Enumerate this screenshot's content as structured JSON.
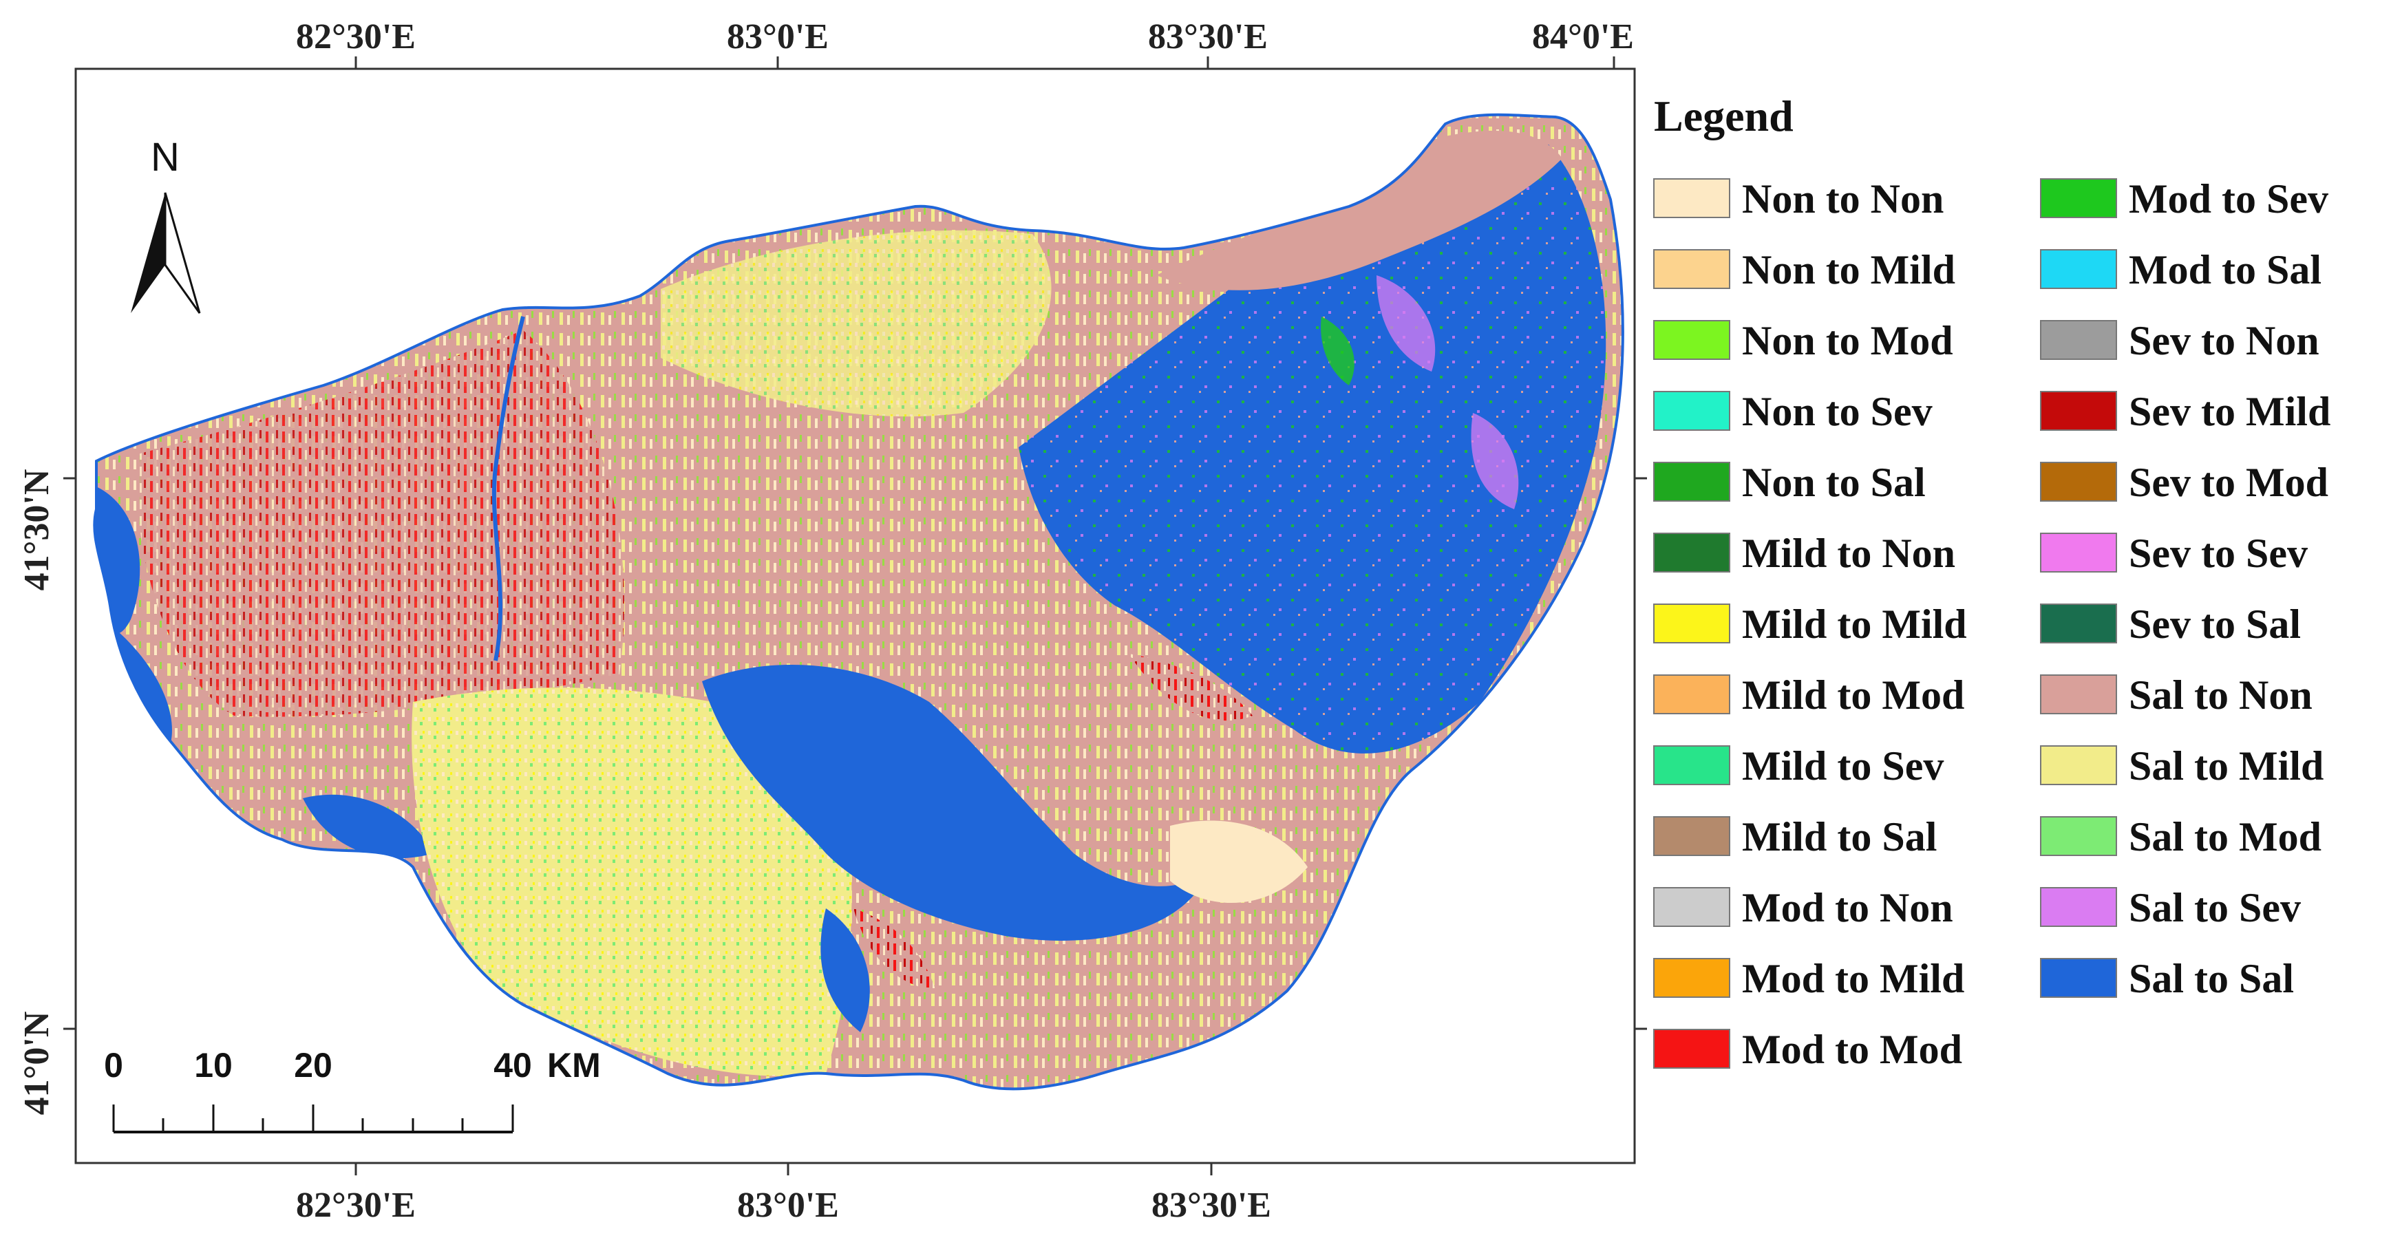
{
  "map": {
    "top_longitudes": [
      "82°30'E",
      "83°0'E",
      "83°30'E",
      "84°0'E"
    ],
    "bottom_longitudes": [
      "82°30'E",
      "83°0'E",
      "83°30'E"
    ],
    "latitudes": [
      "41°30'N",
      "41°0'N"
    ]
  },
  "north_arrow": {
    "label": "N"
  },
  "scale_bar": {
    "ticks": [
      "0",
      "10",
      "20",
      "40"
    ],
    "unit": "KM"
  },
  "legend": {
    "title": "Legend",
    "items": [
      {
        "label": "Non to Non",
        "color": "#FDE9C4"
      },
      {
        "label": "Non to Mild",
        "color": "#FCD38E"
      },
      {
        "label": "Non to Mod",
        "color": "#7CF520"
      },
      {
        "label": "Non to Sev",
        "color": "#22F2C8"
      },
      {
        "label": "Non to Sal",
        "color": "#1FA81F"
      },
      {
        "label": "Mild to Non",
        "color": "#1F7A2E"
      },
      {
        "label": "Mild to Mild",
        "color": "#FCF51A"
      },
      {
        "label": "Mild to Mod",
        "color": "#FBB25A"
      },
      {
        "label": "Mild to Sev",
        "color": "#28E48A"
      },
      {
        "label": "Mild to Sal",
        "color": "#B48A6C"
      },
      {
        "label": "Mod to Non",
        "color": "#CCCCCC"
      },
      {
        "label": "Mod to Mild",
        "color": "#FBA50A"
      },
      {
        "label": "Mod to Mod",
        "color": "#F51414"
      },
      {
        "label": "Mod to Sev",
        "color": "#1EC81E"
      },
      {
        "label": "Mod to Sal",
        "color": "#1ED8F5"
      },
      {
        "label": "Sev to Non",
        "color": "#9C9C9C"
      },
      {
        "label": "Sev to Mild",
        "color": "#C40A0A"
      },
      {
        "label": "Sev to Mod",
        "color": "#B46A0A"
      },
      {
        "label": "Sev to Sev",
        "color": "#F07AEE"
      },
      {
        "label": "Sev to Sal",
        "color": "#1A6E4E"
      },
      {
        "label": "Sal to Non",
        "color": "#D9A09A"
      },
      {
        "label": "Sal to Mild",
        "color": "#F2EC8A"
      },
      {
        "label": "Sal to Mod",
        "color": "#7DEB74"
      },
      {
        "label": "Sal to Sev",
        "color": "#DA7CF2"
      },
      {
        "label": "Sal to Sal",
        "color": "#1F66D9"
      }
    ]
  }
}
